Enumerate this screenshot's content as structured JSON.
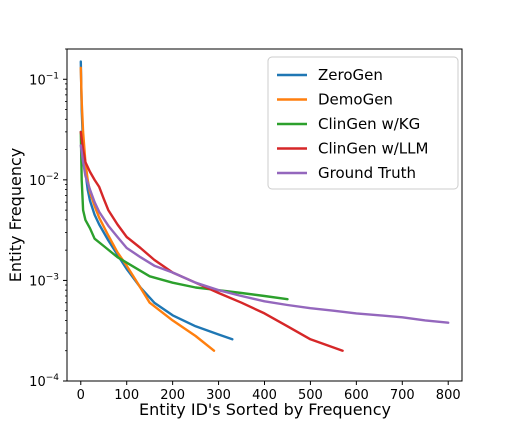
{
  "chart_data": {
    "type": "line",
    "xlabel": "Entity ID's Sorted by Frequency",
    "ylabel": "Entity Frequency",
    "xlim": [
      -30,
      830
    ],
    "ylim": [
      0.0001,
      0.2
    ],
    "yscale": "log",
    "x_ticks": [
      {
        "value": 0,
        "label": "0"
      },
      {
        "value": 100,
        "label": "100"
      },
      {
        "value": 200,
        "label": "200"
      },
      {
        "value": 300,
        "label": "300"
      },
      {
        "value": 400,
        "label": "400"
      },
      {
        "value": 500,
        "label": "500"
      },
      {
        "value": 600,
        "label": "600"
      },
      {
        "value": 700,
        "label": "700"
      },
      {
        "value": 800,
        "label": "800"
      }
    ],
    "y_ticks": [
      {
        "value": 0.1,
        "base": "10",
        "exp": "−1"
      },
      {
        "value": 0.01,
        "base": "10",
        "exp": "−2"
      },
      {
        "value": 0.001,
        "base": "10",
        "exp": "−3"
      },
      {
        "value": 0.0001,
        "base": "10",
        "exp": "−4"
      }
    ],
    "grid": false,
    "legend_position": "top-right",
    "series": [
      {
        "name": "ZeroGen",
        "color": "#1f77b4",
        "x": [
          0,
          2,
          5,
          10,
          15,
          20,
          30,
          40,
          60,
          80,
          100,
          130,
          160,
          200,
          250,
          300,
          330
        ],
        "y": [
          0.15,
          0.05,
          0.022,
          0.012,
          0.008,
          0.0062,
          0.0045,
          0.0036,
          0.0025,
          0.0018,
          0.0013,
          0.00085,
          0.0006,
          0.00045,
          0.00035,
          0.00029,
          0.00026
        ]
      },
      {
        "name": "DemoGen",
        "color": "#ff7f0e",
        "x": [
          0,
          2,
          5,
          10,
          15,
          20,
          30,
          40,
          60,
          80,
          100,
          120,
          150,
          200,
          250,
          290
        ],
        "y": [
          0.13,
          0.06,
          0.03,
          0.015,
          0.01,
          0.0075,
          0.0055,
          0.0042,
          0.0028,
          0.0019,
          0.0014,
          0.001,
          0.0006,
          0.0004,
          0.00028,
          0.0002
        ]
      },
      {
        "name": "ClinGen w/KG",
        "color": "#2ca02c",
        "x": [
          0,
          2,
          5,
          10,
          20,
          30,
          50,
          80,
          100,
          150,
          200,
          250,
          300,
          350,
          400,
          450
        ],
        "y": [
          0.03,
          0.01,
          0.005,
          0.004,
          0.0033,
          0.0026,
          0.0022,
          0.0017,
          0.0015,
          0.0011,
          0.00095,
          0.00085,
          0.0008,
          0.00075,
          0.0007,
          0.00065
        ]
      },
      {
        "name": "ClinGen w/LLM",
        "color": "#d62728",
        "x": [
          0,
          5,
          10,
          20,
          30,
          40,
          50,
          60,
          80,
          100,
          130,
          160,
          200,
          250,
          300,
          350,
          400,
          450,
          500,
          570
        ],
        "y": [
          0.03,
          0.02,
          0.015,
          0.012,
          0.01,
          0.0085,
          0.0065,
          0.005,
          0.0036,
          0.0027,
          0.0021,
          0.0016,
          0.0012,
          0.00095,
          0.00075,
          0.0006,
          0.00047,
          0.00035,
          0.00026,
          0.0002
        ]
      },
      {
        "name": "Ground Truth",
        "color": "#9467bd",
        "x": [
          0,
          5,
          10,
          20,
          30,
          40,
          60,
          80,
          100,
          130,
          160,
          200,
          250,
          300,
          350,
          400,
          450,
          500,
          550,
          600,
          650,
          700,
          750,
          800
        ],
        "y": [
          0.022,
          0.015,
          0.011,
          0.008,
          0.006,
          0.0048,
          0.0035,
          0.0027,
          0.0021,
          0.0017,
          0.0014,
          0.0012,
          0.00095,
          0.0008,
          0.0007,
          0.00062,
          0.00057,
          0.00053,
          0.0005,
          0.00047,
          0.00045,
          0.00043,
          0.0004,
          0.00038
        ]
      }
    ]
  }
}
